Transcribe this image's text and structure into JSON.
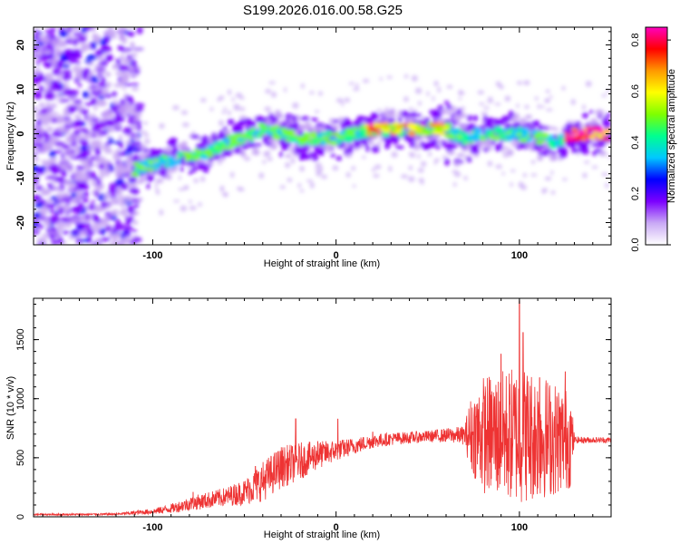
{
  "chart_data": [
    {
      "type": "heatmap",
      "title": "S199.2026.016.00.58.G25",
      "xlabel": "Height of straight line (km)",
      "ylabel": "Frequency (Hz)",
      "xlim": [
        -165,
        150
      ],
      "ylim": [
        -25,
        24
      ],
      "xticks": [
        -100,
        0,
        100
      ],
      "xtick_labels": [
        "-100",
        "0",
        "100"
      ],
      "yticks": [
        -20,
        -10,
        0,
        10,
        20
      ],
      "ytick_labels": [
        "-20",
        "-10",
        "0",
        "10",
        "20"
      ],
      "ridge": {
        "x": [
          -110,
          -100,
          -90,
          -80,
          -70,
          -60,
          -50,
          -40,
          -30,
          -20,
          -10,
          0,
          10,
          20,
          30,
          40,
          50,
          60,
          70,
          80,
          90,
          100,
          110,
          120,
          130,
          140,
          150
        ],
        "y": [
          -8,
          -7,
          -6,
          -5,
          -4,
          -2,
          -1,
          1,
          0,
          -1,
          -1,
          -1,
          0,
          1,
          1,
          1,
          1,
          1,
          -1,
          0,
          0,
          0,
          -1,
          -2,
          0,
          0,
          0
        ]
      },
      "colorbar": {
        "label": "Normalized spectral amplitude",
        "range": [
          0,
          0.85
        ],
        "ticks": [
          0.0,
          0.2,
          0.4,
          0.6,
          0.8
        ],
        "tick_labels": [
          "0.0",
          "0.2",
          "0.4",
          "0.6",
          "0.8"
        ],
        "colors": [
          "#ffffff",
          "#c9a9f5",
          "#7b00ff",
          "#0000ff",
          "#00c8ff",
          "#00ff90",
          "#7fff00",
          "#ffff00",
          "#ff9900",
          "#ff0000",
          "#ff00c0"
        ]
      }
    },
    {
      "type": "line",
      "xlabel": "Height of straight line (km)",
      "ylabel": "SNR (10 * v/v)",
      "xlim": [
        -165,
        150
      ],
      "ylim": [
        0,
        1850
      ],
      "xticks": [
        -100,
        0,
        100
      ],
      "xtick_labels": [
        "-100",
        "0",
        "100"
      ],
      "yticks": [
        0,
        500,
        1000,
        1500
      ],
      "ytick_labels": [
        "0",
        "500",
        "1000",
        "1500"
      ],
      "series": [
        {
          "name": "SNR",
          "color": "#ee3333",
          "envelope_x": [
            -165,
            -140,
            -120,
            -100,
            -90,
            -80,
            -70,
            -60,
            -50,
            -40,
            -30,
            -20,
            -10,
            0,
            10,
            20,
            30,
            40,
            50,
            60,
            70,
            73,
            80,
            90,
            100,
            110,
            120,
            128,
            130,
            140,
            150
          ],
          "envelope_mean": [
            20,
            20,
            22,
            45,
            70,
            110,
            140,
            170,
            210,
            300,
            420,
            470,
            520,
            560,
            600,
            640,
            660,
            670,
            680,
            690,
            690,
            700,
            700,
            690,
            700,
            690,
            660,
            660,
            650,
            650,
            650
          ],
          "envelope_amp": [
            8,
            8,
            10,
            25,
            40,
            60,
            70,
            80,
            110,
            170,
            180,
            160,
            120,
            90,
            70,
            60,
            55,
            50,
            50,
            60,
            80,
            300,
            500,
            550,
            600,
            550,
            480,
            420,
            30,
            25,
            25
          ],
          "spikes": [
            {
              "x": -78,
              "y": 210
            },
            {
              "x": -44,
              "y": 430
            },
            {
              "x": -22,
              "y": 830
            },
            {
              "x": -10,
              "y": 640
            },
            {
              "x": 1,
              "y": 830
            },
            {
              "x": 20,
              "y": 720
            },
            {
              "x": 100,
              "y": 1830
            },
            {
              "x": 102,
              "y": 1560
            },
            {
              "x": 90,
              "y": 1380
            },
            {
              "x": 111,
              "y": 1180
            },
            {
              "x": 125,
              "y": 1230
            }
          ]
        }
      ]
    }
  ]
}
